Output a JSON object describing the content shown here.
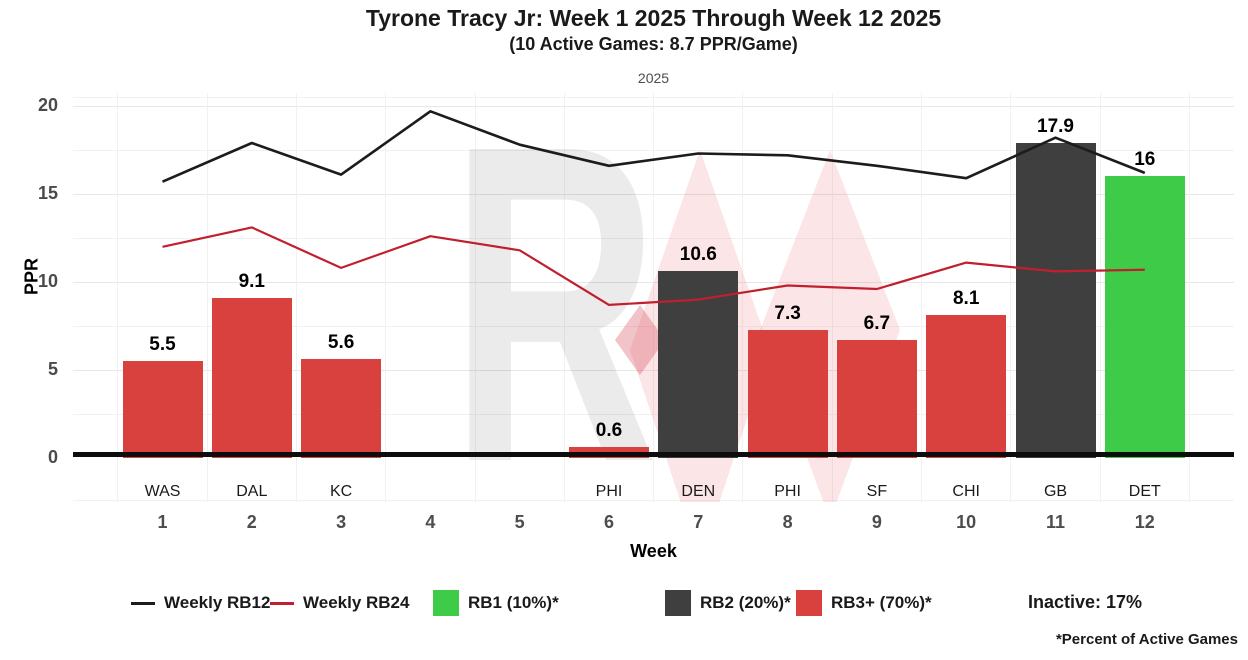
{
  "header": {
    "title": "Tyrone Tracy Jr: Week 1 2025 Through Week 12 2025",
    "subtitle": "(10 Active Games: 8.7 PPR/Game)",
    "facet_label": "2025"
  },
  "watermark": {
    "letter": "R"
  },
  "chart_data": {
    "type": "bar",
    "title": "Tyrone Tracy Jr: Week 1 2025 Through Week 12 2025",
    "xlabel": "Week",
    "ylabel": "PPR",
    "y_ticks": [
      0,
      5,
      10,
      15,
      20
    ],
    "ylim": [
      0,
      20
    ],
    "grid": "on",
    "weeks": [
      "1",
      "2",
      "3",
      "4",
      "5",
      "6",
      "7",
      "8",
      "9",
      "10",
      "11",
      "12"
    ],
    "opponents": [
      "WAS",
      "DAL",
      "KC",
      "",
      "",
      "PHI",
      "DEN",
      "PHI",
      "SF",
      "CHI",
      "GB",
      "DET"
    ],
    "bars": {
      "values": [
        5.5,
        9.1,
        5.6,
        null,
        null,
        0.6,
        10.6,
        7.3,
        6.7,
        8.1,
        17.9,
        16
      ],
      "labels": [
        "5.5",
        "9.1",
        "5.6",
        "",
        "",
        "0.6",
        "10.6",
        "7.3",
        "6.7",
        "8.1",
        "17.9",
        "16"
      ],
      "tiers": [
        "RB3",
        "RB3",
        "RB3",
        "",
        "",
        "RB3",
        "RB2",
        "RB3",
        "RB3",
        "RB3",
        "RB2",
        "RB1"
      ]
    },
    "series": [
      {
        "name": "Weekly RB12",
        "color": "#1c1c1c",
        "values": [
          15.7,
          17.9,
          16.1,
          19.7,
          17.8,
          16.6,
          17.3,
          17.2,
          16.6,
          15.9,
          18.2,
          16.2
        ]
      },
      {
        "name": "Weekly RB24",
        "color": "#c0202e",
        "values": [
          12,
          13.1,
          10.8,
          12.6,
          11.8,
          8.7,
          9,
          9.8,
          9.6,
          11.1,
          10.6,
          10.7
        ]
      }
    ],
    "tier_colors": {
      "RB1": "#3ecb48",
      "RB2": "#3f3f3f",
      "RB3": "#d8413e"
    }
  },
  "legend": {
    "items": [
      {
        "type": "line",
        "color": "#1c1c1c",
        "label": "Weekly RB12"
      },
      {
        "type": "line",
        "color": "#c0202e",
        "label": "Weekly RB24"
      },
      {
        "type": "swatch",
        "color": "#3ecb48",
        "label": "RB1 (10%)*"
      },
      {
        "type": "swatch",
        "color": "#3f3f3f",
        "label": "RB2 (20%)*"
      },
      {
        "type": "swatch",
        "color": "#d8413e",
        "label": "RB3+ (70%)*"
      }
    ],
    "inactive_note": "Inactive: 17%"
  },
  "footnote": "*Percent of Active Games"
}
